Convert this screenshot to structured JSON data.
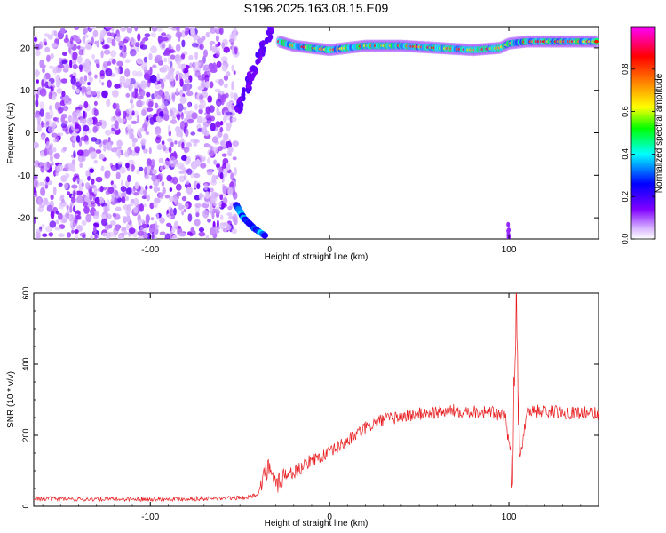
{
  "figure": {
    "title": "S196.2025.163.08.15.E09"
  },
  "chart_data": [
    {
      "type": "heatmap",
      "title": "S196.2025.163.08.15.E09",
      "xlabel": "Height of straight line (km)",
      "ylabel": "Frequency (Hz)",
      "xlim": [
        -165,
        150
      ],
      "ylim": [
        -25,
        25
      ],
      "xticks": [
        -100,
        0,
        100
      ],
      "xtick_labels": [
        "-100",
        "0",
        "100"
      ],
      "yticks": [
        -20,
        -10,
        0,
        10,
        20
      ],
      "ytick_labels": [
        "-20",
        "-10",
        "0",
        "10",
        "20"
      ],
      "colorbar": {
        "label": "Normalized spectral amplitude",
        "range": [
          0,
          1
        ],
        "ticks": [
          0.0,
          0.2,
          0.4,
          0.6,
          0.8
        ],
        "tick_labels": [
          "0.0",
          "0.2",
          "0.4",
          "0.6",
          "0.8"
        ],
        "colormap": [
          "#ffffff",
          "#8000ff",
          "#0000ff",
          "#00ffff",
          "#00ff00",
          "#ffff00",
          "#ff8000",
          "#ff0000",
          "#ff00ff"
        ]
      },
      "features": {
        "noise_region_x": [
          -165,
          -52
        ],
        "signal_track": [
          {
            "x": -28,
            "y": 21.5
          },
          {
            "x": -20,
            "y": 20.5
          },
          {
            "x": -10,
            "y": 20
          },
          {
            "x": 0,
            "y": 19.5
          },
          {
            "x": 10,
            "y": 20
          },
          {
            "x": 20,
            "y": 20.5
          },
          {
            "x": 40,
            "y": 20.5
          },
          {
            "x": 60,
            "y": 20
          },
          {
            "x": 80,
            "y": 19.5
          },
          {
            "x": 95,
            "y": 20
          },
          {
            "x": 100,
            "y": 21
          },
          {
            "x": 110,
            "y": 21.5
          },
          {
            "x": 130,
            "y": 21.5
          },
          {
            "x": 150,
            "y": 21.5
          }
        ],
        "lower_track": [
          {
            "x": -52,
            "y": -17
          },
          {
            "x": -48,
            "y": -20
          },
          {
            "x": -42,
            "y": -22.5
          },
          {
            "x": -35,
            "y": -24.5
          }
        ]
      }
    },
    {
      "type": "line",
      "xlabel": "Height of straight line (km)",
      "ylabel": "SNR (10 * v/v)",
      "xlim": [
        -165,
        150
      ],
      "ylim": [
        0,
        600
      ],
      "xticks": [
        -100,
        0,
        100
      ],
      "xtick_labels": [
        "-100",
        "0",
        "100"
      ],
      "yticks": [
        0,
        200,
        400,
        600
      ],
      "ytick_labels": [
        "0",
        "200",
        "400",
        "600"
      ],
      "color": "#e8191c",
      "series": [
        {
          "x": [
            -165,
            -140,
            -110,
            -80,
            -60,
            -45,
            -40,
            -35,
            -30,
            -25,
            -20,
            -10,
            0,
            10,
            20,
            30,
            50,
            70,
            90,
            98,
            100,
            102,
            104,
            106,
            110,
            130,
            150
          ],
          "values": [
            22,
            20,
            20,
            21,
            22,
            25,
            35,
            110,
            60,
            90,
            95,
            130,
            150,
            185,
            220,
            245,
            260,
            270,
            265,
            250,
            180,
            140,
            600,
            120,
            270,
            265,
            262
          ]
        }
      ]
    }
  ]
}
